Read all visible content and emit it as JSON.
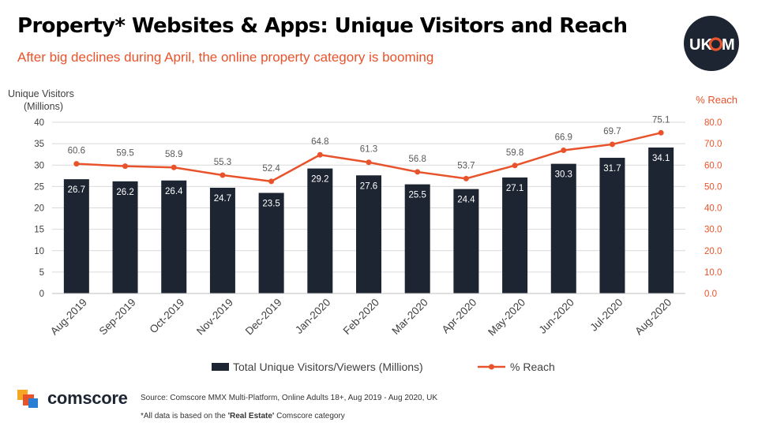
{
  "header": {
    "title": "Property* Websites & Apps: Unique Visitors and Reach",
    "subtitle": "After big declines during April, the online property category is booming"
  },
  "logo": {
    "text_prefix": "UK",
    "text_suffix": "M",
    "background": "#1d2532"
  },
  "footer": {
    "brand": "comscore",
    "source": "Source: Comscore MMX Multi-Platform,  Online Adults 18+, Aug 2019 - Aug 2020, UK",
    "footnote_prefix": "*All data is based on the ",
    "footnote_bold": "'Real Estate'",
    "footnote_suffix": " Comscore category"
  },
  "chart_data": {
    "type": "bar",
    "categories": [
      "Aug-2019",
      "Sep-2019",
      "Oct-2019",
      "Nov-2019",
      "Dec-2019",
      "Jan-2020",
      "Feb-2020",
      "Mar-2020",
      "Apr-2020",
      "May-2020",
      "Jun-2020",
      "Jul-2020",
      "Aug-2020"
    ],
    "series": [
      {
        "name": "Total Unique Visitors/Viewers (Millions)",
        "type": "bar",
        "axis": "left",
        "color": "#1d2532",
        "values": [
          26.7,
          26.2,
          26.4,
          24.7,
          23.5,
          29.2,
          27.6,
          25.5,
          24.4,
          27.1,
          30.3,
          31.7,
          34.1
        ],
        "labels": [
          "26.7",
          "26.2",
          "26.4",
          "24.7",
          "23.5",
          "29.2",
          "27.6",
          "25.5",
          "24.4",
          "27.1",
          "30.3",
          "31.7",
          "34.1"
        ]
      },
      {
        "name": "% Reach",
        "type": "line",
        "axis": "right",
        "color": "#e8532b",
        "values": [
          60.6,
          59.5,
          58.9,
          55.3,
          52.4,
          64.8,
          61.3,
          56.8,
          53.7,
          59.8,
          66.9,
          69.7,
          75.1
        ],
        "labels": [
          "60.6",
          "59.5",
          "58.9",
          "55.3",
          "52.4",
          "64.8",
          "61.3",
          "56.8",
          "53.7",
          "59.8",
          "66.9",
          "69.7",
          "75.1"
        ]
      }
    ],
    "ylabel_left": [
      "Unique Visitors",
      "(Millions)"
    ],
    "ylabel_right": "% Reach",
    "ylim_left": [
      0,
      40
    ],
    "ylim_right": [
      0,
      80
    ],
    "yticks_left": [
      "0",
      "5",
      "10",
      "15",
      "20",
      "25",
      "30",
      "35",
      "40"
    ],
    "yticks_right": [
      "0.0",
      "10.0",
      "20.0",
      "30.0",
      "40.0",
      "50.0",
      "60.0",
      "70.0",
      "80.0"
    ],
    "grid": true,
    "legend": "bottom"
  }
}
